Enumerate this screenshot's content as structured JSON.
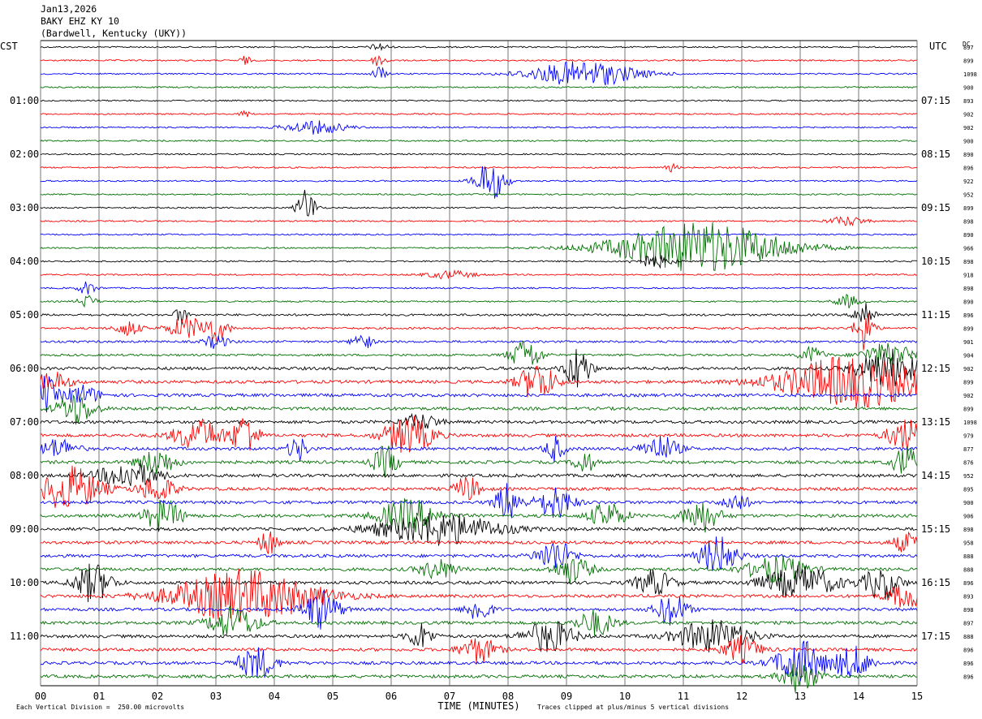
{
  "header": {
    "date": "Jan13,2026",
    "station": "BAKY EHZ KY 10",
    "location": "(Bardwell, Kentucky (UKY))"
  },
  "chart_data": {
    "type": "line",
    "title": "BAKY EHZ KY 10",
    "left_axis_label": "CST",
    "right_axis_label": "UTC",
    "dc_label": "DC",
    "xlabel": "TIME (MINUTES)",
    "x_ticks": [
      "00",
      "01",
      "02",
      "03",
      "04",
      "05",
      "06",
      "07",
      "08",
      "09",
      "10",
      "11",
      "12",
      "13",
      "14",
      "15"
    ],
    "xlim": [
      0,
      15
    ],
    "trace_count": 48,
    "trace_colors": [
      "#000000",
      "#ff0000",
      "#0000ff",
      "#007000"
    ],
    "left_hour_labels": [
      "01:00",
      "02:00",
      "03:00",
      "04:00",
      "05:00",
      "06:00",
      "07:00",
      "08:00",
      "09:00",
      "10:00",
      "11:00"
    ],
    "right_hour_labels": [
      "07:15",
      "08:15",
      "09:15",
      "10:15",
      "11:15",
      "12:15",
      "13:15",
      "14:15",
      "15:15",
      "16:15",
      "17:15"
    ],
    "dc_values": [
      "897",
      "899",
      "1098",
      "900",
      "893",
      "902",
      "902",
      "900",
      "890",
      "896",
      "922",
      "952",
      "899",
      "898",
      "890",
      "966",
      "898",
      "918",
      "898",
      "890",
      "896",
      "899",
      "901",
      "904",
      "902",
      "899",
      "902",
      "899",
      "1098",
      "979",
      "877",
      "876",
      "952",
      "895",
      "900",
      "906",
      "898",
      "958",
      "888",
      "888",
      "896",
      "893",
      "898",
      "897",
      "888",
      "896",
      "896",
      "896"
    ],
    "events": [
      {
        "trace": 0,
        "center": 5.8,
        "width": 0.15,
        "amp": 1.2
      },
      {
        "trace": 1,
        "center": 3.5,
        "width": 0.08,
        "amp": 1.5
      },
      {
        "trace": 1,
        "center": 5.8,
        "width": 0.12,
        "amp": 2.0
      },
      {
        "trace": 2,
        "center": 5.8,
        "width": 0.1,
        "amp": 2.5
      },
      {
        "trace": 2,
        "center": 9.3,
        "width": 0.9,
        "amp": 4.0
      },
      {
        "trace": 5,
        "center": 3.5,
        "width": 0.08,
        "amp": 1.2
      },
      {
        "trace": 6,
        "center": 4.7,
        "width": 0.5,
        "amp": 2.0
      },
      {
        "trace": 9,
        "center": 10.8,
        "width": 0.1,
        "amp": 1.2
      },
      {
        "trace": 10,
        "center": 7.7,
        "width": 0.25,
        "amp": 6.0
      },
      {
        "trace": 12,
        "center": 4.55,
        "width": 0.15,
        "amp": 6.0
      },
      {
        "trace": 13,
        "center": 13.8,
        "width": 0.3,
        "amp": 1.5
      },
      {
        "trace": 15,
        "center": 11.3,
        "width": 1.4,
        "amp": 8.0
      },
      {
        "trace": 16,
        "center": 10.5,
        "width": 0.3,
        "amp": 2.0
      },
      {
        "trace": 17,
        "center": 7.0,
        "width": 0.4,
        "amp": 1.2
      },
      {
        "trace": 18,
        "center": 0.8,
        "width": 0.15,
        "amp": 2.0
      },
      {
        "trace": 19,
        "center": 0.8,
        "width": 0.15,
        "amp": 2.0
      },
      {
        "trace": 19,
        "center": 13.8,
        "width": 0.2,
        "amp": 2.0
      },
      {
        "trace": 20,
        "center": 2.4,
        "width": 0.1,
        "amp": 3.0
      },
      {
        "trace": 20,
        "center": 14.1,
        "width": 0.15,
        "amp": 5.0
      },
      {
        "trace": 21,
        "center": 2.5,
        "width": 0.3,
        "amp": 3.5
      },
      {
        "trace": 21,
        "center": 3.0,
        "width": 0.2,
        "amp": 4.0
      },
      {
        "trace": 21,
        "center": 1.5,
        "width": 0.2,
        "amp": 2.5
      },
      {
        "trace": 21,
        "center": 14.1,
        "width": 0.15,
        "amp": 7.0
      },
      {
        "trace": 22,
        "center": 5.5,
        "width": 0.15,
        "amp": 3.0
      },
      {
        "trace": 22,
        "center": 3.0,
        "width": 0.2,
        "amp": 2.0
      },
      {
        "trace": 23,
        "center": 8.3,
        "width": 0.25,
        "amp": 5.0
      },
      {
        "trace": 23,
        "center": 13.2,
        "width": 0.2,
        "amp": 2.5
      },
      {
        "trace": 23,
        "center": 14.5,
        "width": 0.4,
        "amp": 4.0
      },
      {
        "trace": 24,
        "center": 9.2,
        "width": 0.2,
        "amp": 7.0
      },
      {
        "trace": 24,
        "center": 14.5,
        "width": 0.5,
        "amp": 6.0
      },
      {
        "trace": 25,
        "center": 8.5,
        "width": 0.3,
        "amp": 6.0
      },
      {
        "trace": 25,
        "center": 13.9,
        "width": 1.2,
        "amp": 8.0
      },
      {
        "trace": 25,
        "center": 0.2,
        "width": 0.3,
        "amp": 3.0
      },
      {
        "trace": 26,
        "center": 0.1,
        "width": 0.15,
        "amp": 6.0
      },
      {
        "trace": 26,
        "center": 0.7,
        "width": 0.3,
        "amp": 3.0
      },
      {
        "trace": 27,
        "center": 0.6,
        "width": 0.3,
        "amp": 5.0
      },
      {
        "trace": 28,
        "center": 6.5,
        "width": 0.3,
        "amp": 2.5
      },
      {
        "trace": 29,
        "center": 2.7,
        "width": 0.4,
        "amp": 5.0
      },
      {
        "trace": 29,
        "center": 3.5,
        "width": 0.2,
        "amp": 7.0
      },
      {
        "trace": 29,
        "center": 6.3,
        "width": 0.4,
        "amp": 6.0
      },
      {
        "trace": 29,
        "center": 14.8,
        "width": 0.3,
        "amp": 5.0
      },
      {
        "trace": 30,
        "center": 0.3,
        "width": 0.3,
        "amp": 3.0
      },
      {
        "trace": 30,
        "center": 4.4,
        "width": 0.15,
        "amp": 4.0
      },
      {
        "trace": 30,
        "center": 8.8,
        "width": 0.15,
        "amp": 4.0
      },
      {
        "trace": 30,
        "center": 10.6,
        "width": 0.3,
        "amp": 4.0
      },
      {
        "trace": 31,
        "center": 2.0,
        "width": 0.3,
        "amp": 4.0
      },
      {
        "trace": 31,
        "center": 5.9,
        "width": 0.2,
        "amp": 5.0
      },
      {
        "trace": 31,
        "center": 9.3,
        "width": 0.15,
        "amp": 4.0
      },
      {
        "trace": 31,
        "center": 14.8,
        "width": 0.2,
        "amp": 5.0
      },
      {
        "trace": 32,
        "center": 1.5,
        "width": 0.5,
        "amp": 4.0
      },
      {
        "trace": 33,
        "center": 0.5,
        "width": 0.5,
        "amp": 7.0
      },
      {
        "trace": 33,
        "center": 2.0,
        "width": 0.3,
        "amp": 4.0
      },
      {
        "trace": 33,
        "center": 7.3,
        "width": 0.2,
        "amp": 4.0
      },
      {
        "trace": 34,
        "center": 8.0,
        "width": 0.2,
        "amp": 6.0
      },
      {
        "trace": 34,
        "center": 8.8,
        "width": 0.3,
        "amp": 5.0
      },
      {
        "trace": 34,
        "center": 11.9,
        "width": 0.2,
        "amp": 3.0
      },
      {
        "trace": 35,
        "center": 2.1,
        "width": 0.3,
        "amp": 5.0
      },
      {
        "trace": 35,
        "center": 6.3,
        "width": 0.5,
        "amp": 5.0
      },
      {
        "trace": 35,
        "center": 9.7,
        "width": 0.3,
        "amp": 4.0
      },
      {
        "trace": 35,
        "center": 11.3,
        "width": 0.3,
        "amp": 5.0
      },
      {
        "trace": 36,
        "center": 6.8,
        "width": 1.0,
        "amp": 5.0
      },
      {
        "trace": 37,
        "center": 3.9,
        "width": 0.15,
        "amp": 4.0
      },
      {
        "trace": 37,
        "center": 14.8,
        "width": 0.2,
        "amp": 3.0
      },
      {
        "trace": 38,
        "center": 8.8,
        "width": 0.3,
        "amp": 5.0
      },
      {
        "trace": 38,
        "center": 11.6,
        "width": 0.3,
        "amp": 6.0
      },
      {
        "trace": 39,
        "center": 9.1,
        "width": 0.3,
        "amp": 4.0
      },
      {
        "trace": 39,
        "center": 12.6,
        "width": 0.5,
        "amp": 4.0
      },
      {
        "trace": 39,
        "center": 6.8,
        "width": 0.3,
        "amp": 3.0
      },
      {
        "trace": 40,
        "center": 0.9,
        "width": 0.3,
        "amp": 6.0
      },
      {
        "trace": 40,
        "center": 10.5,
        "width": 0.3,
        "amp": 4.0
      },
      {
        "trace": 40,
        "center": 13.0,
        "width": 0.6,
        "amp": 5.0
      },
      {
        "trace": 40,
        "center": 14.4,
        "width": 0.3,
        "amp": 5.0
      },
      {
        "trace": 41,
        "center": 3.5,
        "width": 1.2,
        "amp": 8.0
      },
      {
        "trace": 41,
        "center": 14.8,
        "width": 0.3,
        "amp": 4.0
      },
      {
        "trace": 42,
        "center": 4.8,
        "width": 0.3,
        "amp": 6.0
      },
      {
        "trace": 42,
        "center": 7.5,
        "width": 0.2,
        "amp": 4.0
      },
      {
        "trace": 42,
        "center": 10.8,
        "width": 0.25,
        "amp": 5.0
      },
      {
        "trace": 43,
        "center": 3.3,
        "width": 0.4,
        "amp": 5.0
      },
      {
        "trace": 43,
        "center": 9.5,
        "width": 0.3,
        "amp": 4.0
      },
      {
        "trace": 44,
        "center": 6.5,
        "width": 0.2,
        "amp": 4.0
      },
      {
        "trace": 44,
        "center": 8.7,
        "width": 0.4,
        "amp": 5.0
      },
      {
        "trace": 44,
        "center": 11.5,
        "width": 0.6,
        "amp": 5.0
      },
      {
        "trace": 45,
        "center": 7.5,
        "width": 0.3,
        "amp": 4.0
      },
      {
        "trace": 45,
        "center": 12.0,
        "width": 0.3,
        "amp": 4.0
      },
      {
        "trace": 46,
        "center": 3.7,
        "width": 0.3,
        "amp": 5.0
      },
      {
        "trace": 46,
        "center": 13.0,
        "width": 0.4,
        "amp": 7.0
      },
      {
        "trace": 46,
        "center": 13.9,
        "width": 0.3,
        "amp": 5.0
      },
      {
        "trace": 47,
        "center": 13.0,
        "width": 0.3,
        "amp": 5.0
      }
    ]
  },
  "footer": {
    "scale_note": "Each Vertical Division =  250.00 microvolts",
    "clip_note": "Traces clipped at plus/minus 5 vertical divisions"
  }
}
